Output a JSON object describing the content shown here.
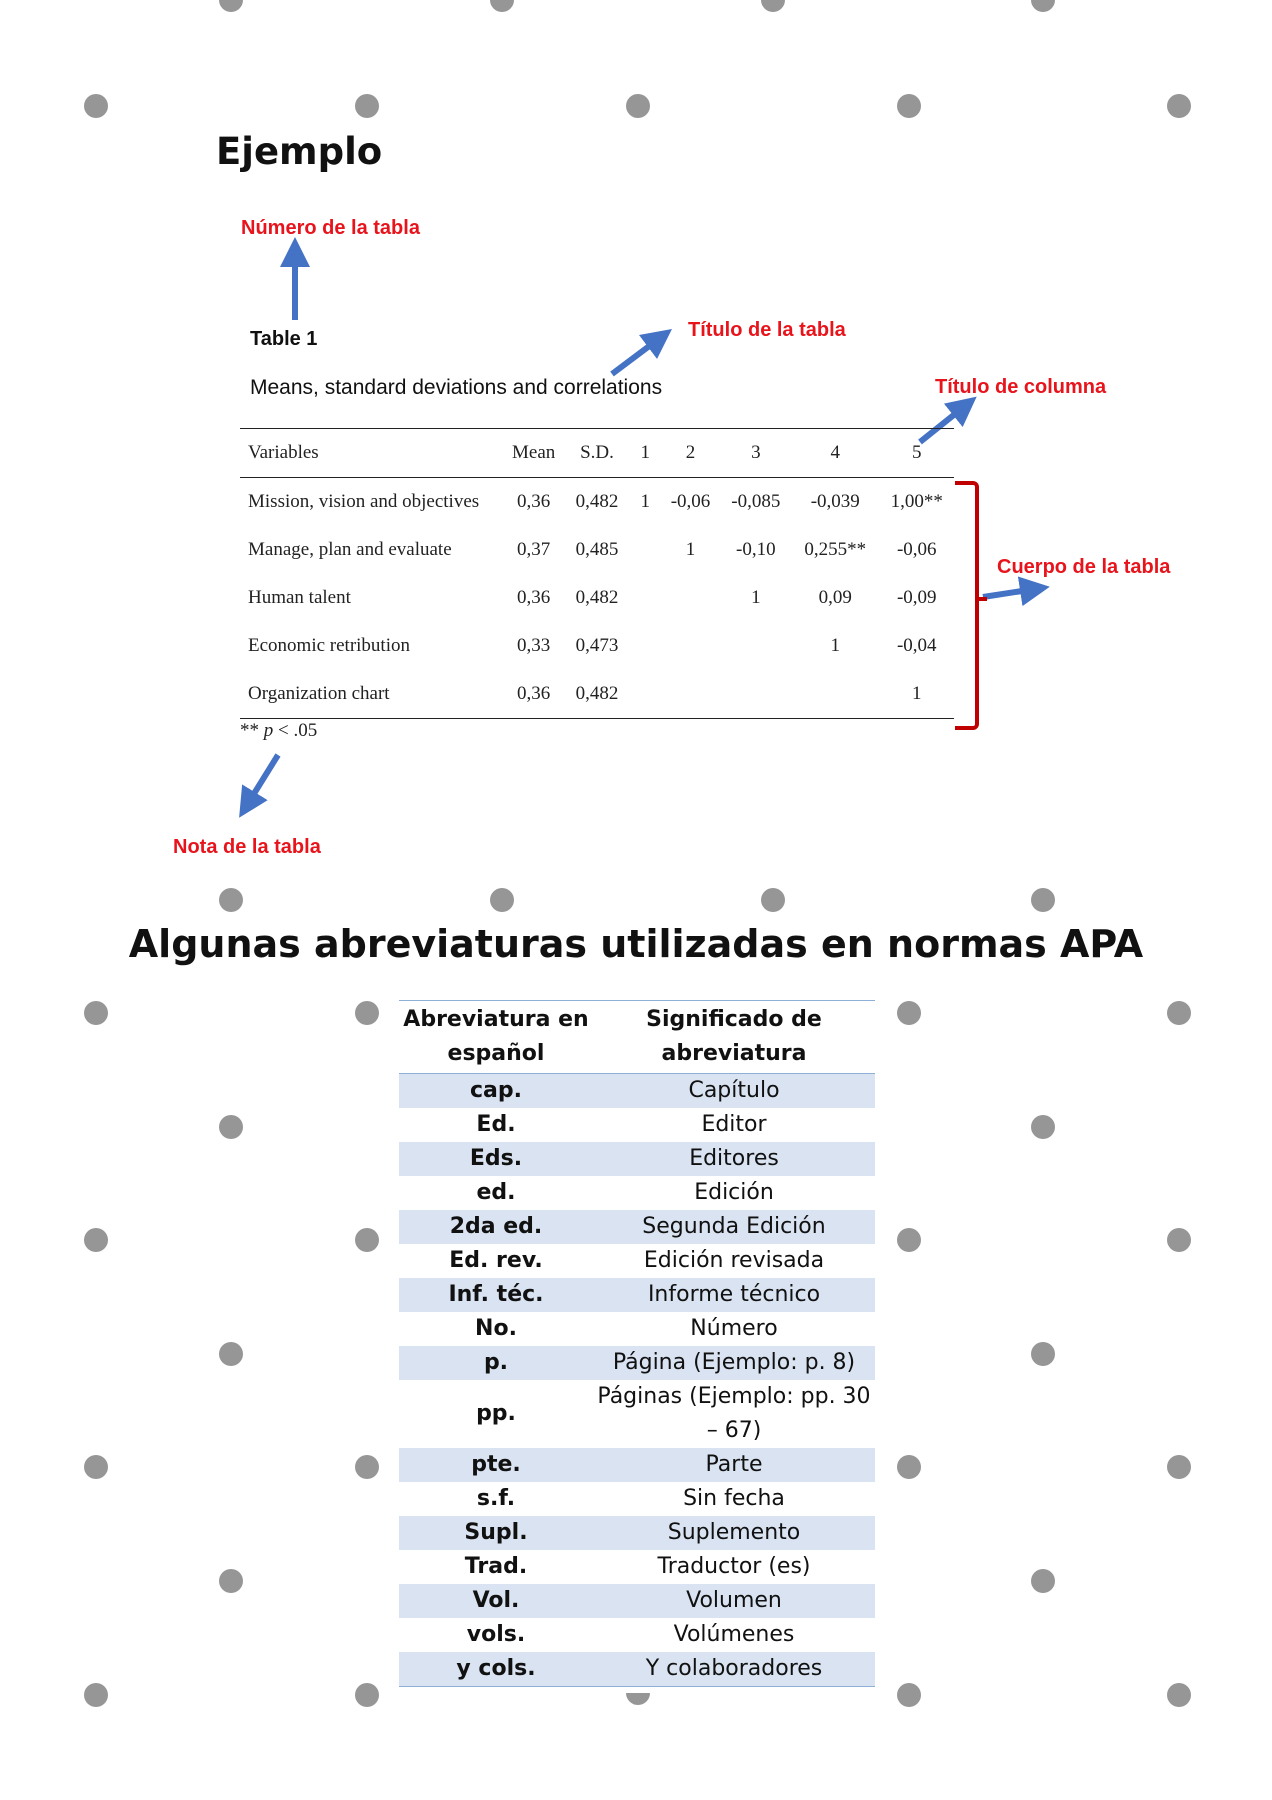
{
  "example": {
    "heading": "Ejemplo",
    "labels": {
      "table_number": "Número de la tabla",
      "table_title": "Título de la tabla",
      "column_title": "Título de columna",
      "table_body": "Cuerpo de la tabla",
      "table_note": "Nota de la tabla"
    },
    "table_number": "Table 1",
    "table_title": "Means, standard deviations and correlations",
    "columns": [
      "Variables",
      "Mean",
      "S.D.",
      "1",
      "2",
      "3",
      "4",
      "5"
    ],
    "rows": [
      [
        "Mission, vision and objectives",
        "0,36",
        "0,482",
        "1",
        "-0,06",
        "-0,085",
        "-0,039",
        "1,00**"
      ],
      [
        "Manage, plan and evaluate",
        "0,37",
        "0,485",
        "",
        "1",
        "-0,10",
        "0,255**",
        "-0,06"
      ],
      [
        "Human talent",
        "0,36",
        "0,482",
        "",
        "",
        "1",
        "0,09",
        "-0,09"
      ],
      [
        "Economic retribution",
        "0,33",
        "0,473",
        "",
        "",
        "",
        "1",
        "-0,04"
      ],
      [
        "Organization chart",
        "0,36",
        "0,482",
        "",
        "",
        "",
        "",
        "1"
      ]
    ],
    "note_stars": "**",
    "note_p": "p",
    "note_rest": "< .05"
  },
  "abbreviations": {
    "heading": "Algunas abreviaturas utilizadas en normas APA",
    "col1_line1": "Abreviatura en",
    "col1_line2": "español",
    "col2_line1": "Significado de",
    "col2_line2": "abreviatura",
    "rows": [
      [
        "cap.",
        "Capítulo"
      ],
      [
        "Ed.",
        "Editor"
      ],
      [
        "Eds.",
        "Editores"
      ],
      [
        "ed.",
        "Edición"
      ],
      [
        "2da ed.",
        "Segunda Edición"
      ],
      [
        "Ed. rev.",
        "Edición revisada"
      ],
      [
        "Inf. téc.",
        "Informe técnico"
      ],
      [
        "No.",
        "Número"
      ],
      [
        "p.",
        "Página (Ejemplo: p. 8)"
      ],
      [
        "pp.",
        "Páginas (Ejemplo: pp. 30 – 67)"
      ],
      [
        "pte.",
        "Parte"
      ],
      [
        "s.f.",
        "Sin fecha"
      ],
      [
        "Supl.",
        "Suplemento"
      ],
      [
        "Trad.",
        "Traductor (es)"
      ],
      [
        "Vol.",
        "Volumen"
      ],
      [
        "vols.",
        "Volúmenes"
      ],
      [
        "y cols.",
        "Y colaboradores"
      ]
    ]
  },
  "colors": {
    "label_red": "#e8141c",
    "arrow_blue": "#4472c4",
    "brace_red": "#c00000",
    "band_blue": "#d9e3f1",
    "dot_gray": "#969696"
  }
}
